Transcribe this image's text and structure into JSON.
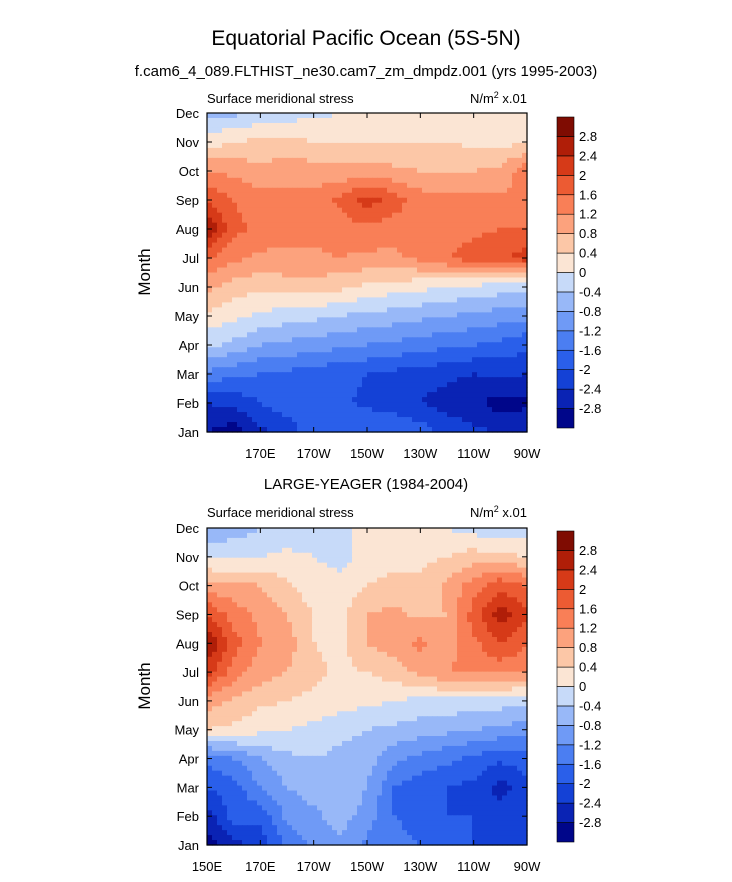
{
  "figure": {
    "title": "Equatorial Pacific Ocean (5S-5N)",
    "subtitle": "f.cam6_4_089.FLTHIST_ne30.cam7_zm_dmpdz.001 (yrs 1995-2003)"
  },
  "colorbar": {
    "levels": [
      -2.8,
      -2.4,
      -2,
      -1.6,
      -1.2,
      -0.8,
      -0.4,
      0,
      0.4,
      0.8,
      1.2,
      1.6,
      2,
      2.4,
      2.8
    ],
    "labels": [
      "-2.8",
      "-2.4",
      "-2",
      "-1.6",
      "-1.2",
      "-0.8",
      "-0.4",
      "0",
      "0.4",
      "0.8",
      "1.2",
      "1.6",
      "2",
      "2.4",
      "2.8"
    ],
    "colors": [
      "#00068a",
      "#0a23b4",
      "#1441d6",
      "#2a5fea",
      "#4b7ef2",
      "#6f9af6",
      "#98b8f8",
      "#c7daf9",
      "#fbe5d4",
      "#fcc7a7",
      "#fca27d",
      "#f97f57",
      "#ec5b33",
      "#d63a18",
      "#b01e08",
      "#7f0c02"
    ]
  },
  "chart_data": [
    {
      "type": "heatmap",
      "title": "",
      "left_label": "Surface meridional stress",
      "right_label_base": "N/m",
      "right_label_exp": "2",
      "right_label_scale": " x.01",
      "ylabel": "Month",
      "xlabel": "",
      "x_tick_labels": [
        "170E",
        "170W",
        "150W",
        "130W",
        "110W",
        "90W"
      ],
      "x_tick_positions_deg": [
        170,
        190,
        210,
        230,
        250,
        270
      ],
      "xlim_deg": [
        150,
        270
      ],
      "y_tick_labels": [
        "Jan",
        "Feb",
        "Mar",
        "Apr",
        "May",
        "Jun",
        "Jul",
        "Aug",
        "Sep",
        "Oct",
        "Nov",
        "Dec"
      ],
      "x_deg": [
        150,
        160,
        170,
        180,
        190,
        200,
        210,
        220,
        230,
        240,
        250,
        260,
        270
      ],
      "values": [
        [
          -2.8,
          -3.0,
          -2.5,
          -2.2,
          -1.8,
          -1.7,
          -1.6,
          -1.6,
          -1.8,
          -2.1,
          -2.3,
          -2.4,
          -2.4
        ],
        [
          -2.4,
          -2.3,
          -2.0,
          -1.8,
          -1.8,
          -1.9,
          -2.1,
          -2.2,
          -2.4,
          -2.6,
          -2.7,
          -3.0,
          -2.9
        ],
        [
          -1.3,
          -1.5,
          -1.6,
          -1.7,
          -1.8,
          -1.9,
          -2.0,
          -2.1,
          -2.2,
          -2.3,
          -2.4,
          -2.3,
          -2.4
        ],
        [
          -0.3,
          -0.5,
          -0.8,
          -0.9,
          -1.0,
          -1.1,
          -1.2,
          -1.3,
          -1.4,
          -1.5,
          -1.6,
          -1.7,
          -1.9
        ],
        [
          0.3,
          0.1,
          -0.1,
          -0.2,
          -0.3,
          -0.4,
          -0.5,
          -0.6,
          -0.7,
          -0.8,
          -0.9,
          -1.0,
          -1.1
        ],
        [
          0.9,
          0.6,
          0.5,
          0.6,
          0.6,
          0.5,
          0.3,
          0.2,
          0.1,
          0.0,
          -0.1,
          -0.2,
          -0.2
        ],
        [
          1.6,
          1.3,
          1.1,
          1.1,
          1.1,
          1.2,
          1.1,
          1.1,
          1.3,
          1.6,
          1.8,
          1.9,
          2.2
        ],
        [
          2.8,
          1.7,
          1.5,
          1.4,
          1.4,
          1.4,
          1.5,
          1.4,
          1.4,
          1.4,
          1.5,
          1.6,
          1.6
        ],
        [
          2.0,
          1.6,
          1.4,
          1.3,
          1.3,
          1.7,
          2.2,
          1.8,
          1.4,
          1.3,
          1.3,
          1.3,
          1.2
        ],
        [
          1.2,
          1.1,
          0.9,
          1.1,
          1.0,
          0.9,
          1.0,
          0.9,
          0.8,
          0.8,
          0.8,
          0.9,
          1.5
        ],
        [
          0.2,
          0.4,
          0.5,
          0.5,
          0.4,
          0.4,
          0.4,
          0.4,
          0.4,
          0.4,
          0.3,
          0.3,
          0.3
        ],
        [
          -0.5,
          -0.5,
          -0.3,
          -0.2,
          -0.1,
          0.0,
          0.1,
          0.1,
          0.2,
          0.2,
          0.3,
          0.3,
          0.3
        ]
      ]
    },
    {
      "type": "heatmap",
      "title": "LARGE-YEAGER (1984-2004)",
      "left_label": "Surface meridional stress",
      "right_label_base": "N/m",
      "right_label_exp": "2",
      "right_label_scale": " x.01",
      "ylabel": "Month",
      "xlabel": "",
      "x_tick_labels": [
        "150E",
        "170E",
        "170W",
        "150W",
        "130W",
        "110W",
        "90W"
      ],
      "x_tick_positions_deg": [
        150,
        170,
        190,
        210,
        230,
        250,
        270
      ],
      "xlim_deg": [
        150,
        270
      ],
      "y_tick_labels": [
        "Jan",
        "Feb",
        "Mar",
        "Apr",
        "May",
        "Jun",
        "Jul",
        "Aug",
        "Sep",
        "Oct",
        "Nov",
        "Dec"
      ],
      "x_deg": [
        150,
        160,
        170,
        180,
        190,
        200,
        210,
        220,
        230,
        240,
        250,
        260,
        270
      ],
      "values": [
        [
          -3.0,
          -2.6,
          -2.2,
          -1.5,
          -1.1,
          -0.9,
          -1.3,
          -1.5,
          -1.6,
          -1.7,
          -2.0,
          -2.0,
          -2.0
        ],
        [
          -2.6,
          -1.8,
          -1.9,
          -1.1,
          -0.9,
          -0.6,
          -1.0,
          -1.6,
          -1.7,
          -2.0,
          -2.0,
          -2.2,
          -2.0
        ],
        [
          -2.0,
          -1.8,
          -1.2,
          -0.8,
          -0.6,
          -0.4,
          -0.8,
          -1.6,
          -1.9,
          -2.0,
          -2.1,
          -2.6,
          -2.1
        ],
        [
          -1.5,
          -1.2,
          -0.8,
          -0.5,
          -0.4,
          -0.5,
          -0.6,
          -1.1,
          -1.3,
          -1.5,
          -1.7,
          -1.9,
          -1.8
        ],
        [
          0.4,
          0.3,
          0.1,
          0.0,
          -0.1,
          -0.3,
          -0.4,
          -0.5,
          -0.6,
          -0.7,
          -0.8,
          -0.9,
          -1.0
        ],
        [
          1.0,
          0.7,
          0.5,
          0.4,
          0.3,
          0.2,
          0.1,
          0.0,
          -0.1,
          -0.1,
          -0.2,
          -0.2,
          -0.3
        ],
        [
          2.2,
          1.4,
          1.0,
          0.8,
          0.5,
          0.3,
          0.4,
          0.6,
          0.9,
          1.2,
          1.3,
          1.3,
          1.3
        ],
        [
          2.8,
          1.8,
          1.2,
          1.0,
          0.4,
          0.3,
          0.8,
          1.0,
          1.3,
          1.0,
          1.5,
          2.0,
          1.6
        ],
        [
          2.0,
          1.4,
          1.1,
          0.8,
          0.4,
          0.3,
          0.8,
          0.9,
          0.7,
          0.8,
          1.8,
          2.6,
          2.1
        ],
        [
          1.0,
          0.9,
          0.8,
          0.5,
          0.1,
          0.1,
          0.4,
          0.6,
          0.5,
          0.9,
          1.4,
          1.9,
          1.6
        ],
        [
          -0.1,
          -0.1,
          0.0,
          0.1,
          0.0,
          -0.1,
          0.1,
          0.2,
          0.3,
          0.4,
          0.6,
          0.5,
          0.4
        ],
        [
          -0.7,
          -0.6,
          -0.4,
          -0.3,
          -0.2,
          -0.1,
          0.1,
          0.3,
          0.2,
          0.0,
          -0.2,
          -0.3,
          -0.3
        ]
      ]
    }
  ]
}
